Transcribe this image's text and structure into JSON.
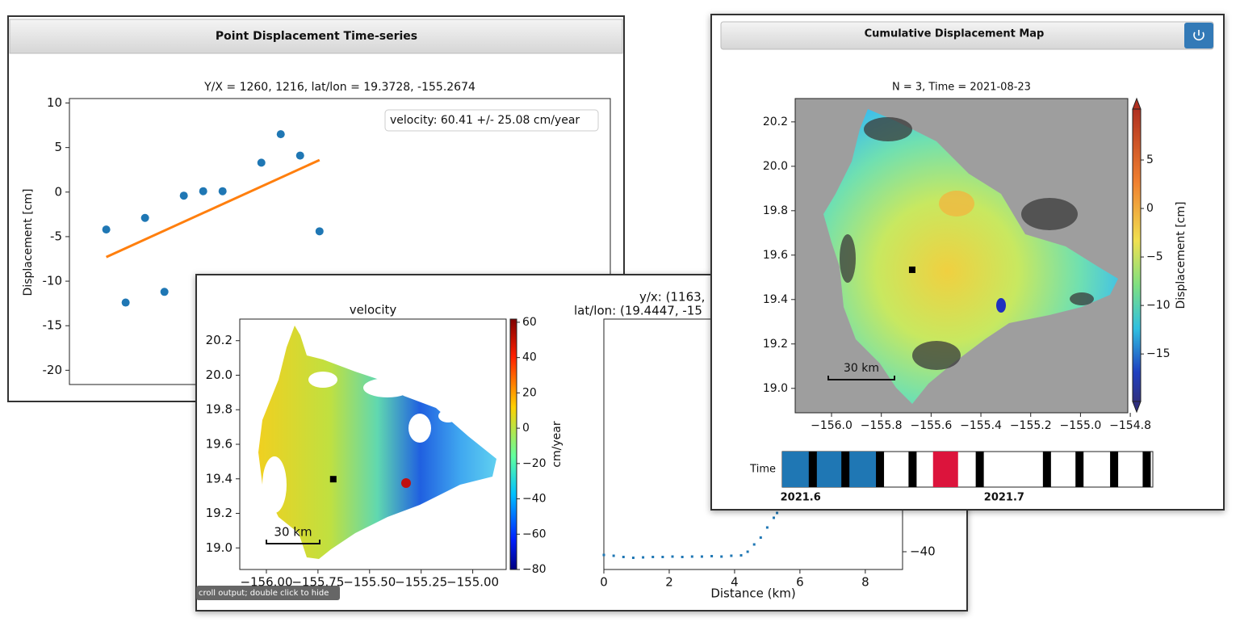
{
  "windows": {
    "timeseries": "Point Displacement Time-series",
    "map": "Cumulative Displacement Map"
  },
  "tooltip": "croll output; double click to hide",
  "chart_data": [
    {
      "type": "scatter",
      "title": "Y/X = 1260, 1216, lat/lon = 19.3728, -155.2674",
      "ylabel": "Displacement [cm]",
      "annotation": "velocity: 60.41 +/- 25.08 cm/year",
      "x": [
        0,
        1,
        2,
        3,
        4,
        5,
        6,
        8,
        9,
        10,
        11
      ],
      "values": [
        -4.2,
        -12.4,
        -2.9,
        -11.2,
        -0.4,
        0.1,
        0.1,
        3.3,
        6.5,
        4.1,
        -4.4
      ],
      "color": "#1f77b4",
      "fit": {
        "x": [
          0,
          11
        ],
        "values": [
          -7.3,
          3.6
        ],
        "color": "#ff7f0e"
      },
      "xlim": [
        -1.9,
        26
      ],
      "ylim": [
        -21.6,
        10.5
      ],
      "yticks": [
        10,
        5,
        0,
        -5,
        -10,
        -15,
        -20
      ]
    },
    {
      "type": "map",
      "title": "velocity",
      "xlim": [
        -156.129,
        -154.838
      ],
      "ylim": [
        18.875,
        20.325
      ],
      "xticks": [
        {
          "value": -156,
          "label": "−156.00"
        },
        {
          "value": -155.75,
          "label": "−155.75"
        },
        {
          "value": -155.5,
          "label": "−155.50"
        },
        {
          "value": -155.25,
          "label": "−155.25"
        },
        {
          "value": -155,
          "label": "−155.00"
        }
      ],
      "yticks": [
        20.2,
        {
          "value": 20,
          "label": "20.0"
        },
        19.8,
        19.6,
        19.4,
        19.2,
        {
          "value": 19,
          "label": "19.0"
        }
      ],
      "marker": {
        "x": -155.676,
        "y": 19.398
      },
      "scalebar": "30 km",
      "colorbar": {
        "label": "cm/year",
        "lim": [
          -80,
          61.8
        ],
        "ticks": [
          60,
          40,
          20,
          0,
          {
            "value": -20,
            "label": "−20"
          },
          {
            "value": -40,
            "label": "−40"
          },
          {
            "value": -60,
            "label": "−60"
          },
          {
            "value": -80,
            "label": "−80"
          }
        ]
      }
    },
    {
      "type": "profile",
      "title": "y/x: (1163,",
      "subtitle": "lat/lon: (19.4447, -15",
      "xlabel": "Distance (km)",
      "x": [
        0,
        0.3,
        0.6,
        0.9,
        1.2,
        1.5,
        1.8,
        2.1,
        2.4,
        2.7,
        3.0,
        3.3,
        3.6,
        3.9,
        4.2,
        4.4,
        4.6,
        4.8,
        5.0,
        5.2,
        5.3
      ],
      "values": [
        -40.8,
        -41.0,
        -41.3,
        -41.5,
        -41.4,
        -41.3,
        -41.3,
        -41.2,
        -41.3,
        -41.2,
        -41.2,
        -41.1,
        -41.2,
        -41.0,
        -40.9,
        -40.0,
        -38.2,
        -36.5,
        -34.0,
        -31.6,
        -30.4
      ],
      "color": "#1f77b4",
      "xlim": [
        0,
        9.14
      ],
      "ylim": [
        -44.4,
        17.6
      ],
      "xticks": [
        0,
        2,
        4,
        6,
        8
      ],
      "yticks": [
        {
          "value": -40,
          "label": "−40"
        }
      ]
    },
    {
      "type": "map",
      "title": "N = 3, Time = 2021-08-23",
      "xlim": [
        -156.146,
        -154.81
      ],
      "ylim": [
        18.89,
        20.305
      ],
      "xticks": [
        {
          "value": -156,
          "label": "−156.0"
        },
        {
          "value": -155.8,
          "label": "−155.8"
        },
        {
          "value": -155.6,
          "label": "−155.6"
        },
        {
          "value": -155.4,
          "label": "−155.4"
        },
        {
          "value": -155.2,
          "label": "−155.2"
        },
        {
          "value": -155,
          "label": "−155.0"
        },
        {
          "value": -154.8,
          "label": "−154.8"
        }
      ],
      "yticks": [
        20.2,
        {
          "value": 20,
          "label": "20.0"
        },
        19.8,
        19.6,
        19.4,
        19.2,
        {
          "value": 19,
          "label": "19.0"
        }
      ],
      "marker": {
        "x": -155.676,
        "y": 19.534
      },
      "scalebar": "30 km",
      "colorbar": {
        "label": "Displacement [cm]",
        "lim": [
          -19.9,
          10.25
        ],
        "ticks": [
          5,
          0,
          {
            "value": -5,
            "label": "−5"
          },
          {
            "value": -10,
            "label": "−10"
          },
          {
            "value": -15,
            "label": "−15"
          }
        ]
      }
    },
    {
      "type": "timeline",
      "label": "Time",
      "xlim": [
        2021.591,
        2021.773
      ],
      "xticks": [
        2021.6,
        2021.7
      ],
      "dates": [
        2021.606,
        2021.622,
        2021.639,
        2021.655,
        2021.688,
        2021.721,
        2021.737,
        2021.754,
        2021.77
      ],
      "selected": 2021.671
    }
  ]
}
